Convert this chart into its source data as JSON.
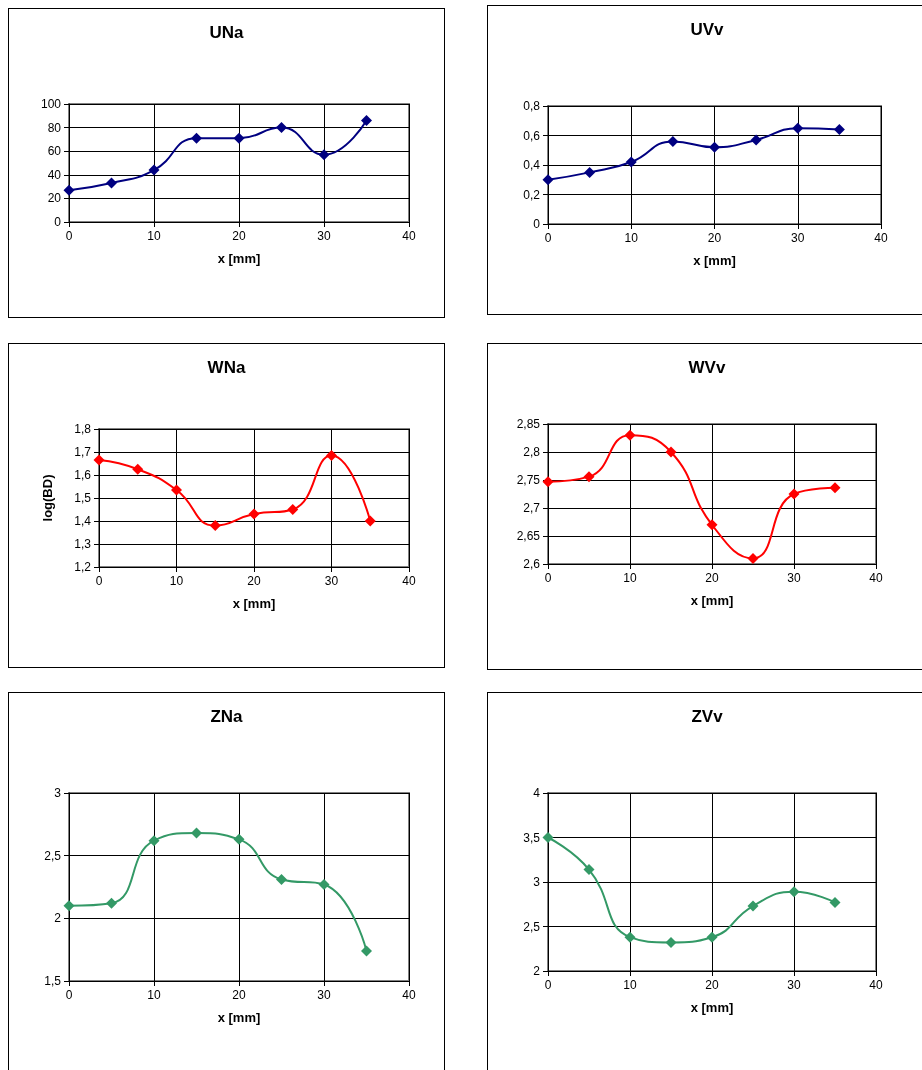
{
  "chart_data": [
    {
      "type": "line",
      "title": "UNa",
      "xlabel": "x [mm]",
      "x": [
        0,
        5,
        10,
        15,
        20,
        25,
        30,
        35
      ],
      "series": [
        {
          "color": "#000080",
          "values": [
            27,
            33,
            44,
            71,
            71,
            80,
            57,
            86
          ]
        }
      ],
      "xlim": [
        0,
        40
      ],
      "xticks": [
        0,
        10,
        20,
        30,
        40
      ],
      "ylim": [
        0,
        100
      ],
      "yticks": [
        0,
        20,
        40,
        60,
        80,
        100
      ],
      "grid": true,
      "marker": "diamond",
      "line_style": "solid"
    },
    {
      "type": "line",
      "title": "UVv",
      "xlabel": "x [mm]",
      "x": [
        0,
        5,
        10,
        15,
        20,
        25,
        30,
        35
      ],
      "series": [
        {
          "color": "#000080",
          "values": [
            0.3,
            0.35,
            0.42,
            0.56,
            0.52,
            0.57,
            0.65,
            0.64
          ]
        }
      ],
      "xlim": [
        0,
        40
      ],
      "xticks": [
        0,
        10,
        20,
        30,
        40
      ],
      "ylim": [
        0,
        0.8
      ],
      "yticks": [
        0,
        {
          "value": 0.2,
          "label": "0,2"
        },
        {
          "value": 0.4,
          "label": "0,4"
        },
        {
          "value": 0.6,
          "label": "0,6"
        },
        {
          "value": 0.8,
          "label": "0,8"
        }
      ],
      "grid": true,
      "marker": "diamond",
      "line_style": "solid"
    },
    {
      "type": "line",
      "title": "WNa",
      "xlabel": "x [mm]",
      "ylabel": "log(BD)",
      "x": [
        0,
        5,
        10,
        15,
        20,
        25,
        30,
        35
      ],
      "series": [
        {
          "color": "#ff0000",
          "values": [
            1.665,
            1.625,
            1.535,
            1.38,
            1.43,
            1.45,
            1.685,
            1.4
          ]
        }
      ],
      "xlim": [
        0,
        40
      ],
      "xticks": [
        0,
        10,
        20,
        30,
        40
      ],
      "ylim": [
        1.2,
        1.8
      ],
      "yticks": [
        {
          "value": 1.2,
          "label": "1,2"
        },
        {
          "value": 1.3,
          "label": "1,3"
        },
        {
          "value": 1.4,
          "label": "1,4"
        },
        {
          "value": 1.5,
          "label": "1,5"
        },
        {
          "value": 1.6,
          "label": "1,6"
        },
        {
          "value": 1.7,
          "label": "1,7"
        },
        {
          "value": 1.8,
          "label": "1,8"
        }
      ],
      "grid": true,
      "marker": "diamond",
      "line_style": "solid"
    },
    {
      "type": "line",
      "title": "WVv",
      "xlabel": "x [mm]",
      "x": [
        0,
        5,
        10,
        15,
        20,
        25,
        30,
        35
      ],
      "series": [
        {
          "color": "#ff0000",
          "values": [
            2.747,
            2.756,
            2.83,
            2.8,
            2.67,
            2.61,
            2.725,
            2.736
          ]
        }
      ],
      "xlim": [
        0,
        40
      ],
      "xticks": [
        0,
        10,
        20,
        30,
        40
      ],
      "ylim": [
        2.6,
        2.85
      ],
      "yticks": [
        {
          "value": 2.6,
          "label": "2,6"
        },
        {
          "value": 2.65,
          "label": "2,65"
        },
        {
          "value": 2.7,
          "label": "2,7"
        },
        {
          "value": 2.75,
          "label": "2,75"
        },
        {
          "value": 2.8,
          "label": "2,8"
        },
        {
          "value": 2.85,
          "label": "2,85"
        }
      ],
      "grid": true,
      "marker": "diamond",
      "line_style": "solid"
    },
    {
      "type": "line",
      "title": "ZNa",
      "xlabel": "x [mm]",
      "x": [
        0,
        5,
        10,
        15,
        20,
        25,
        30,
        35
      ],
      "series": [
        {
          "color": "#339966",
          "values": [
            2.1,
            2.12,
            2.62,
            2.68,
            2.63,
            2.31,
            2.27,
            1.74
          ]
        }
      ],
      "xlim": [
        0,
        40
      ],
      "xticks": [
        0,
        10,
        20,
        30,
        40
      ],
      "ylim": [
        1.5,
        3
      ],
      "yticks": [
        {
          "value": 1.5,
          "label": "1,5"
        },
        2,
        {
          "value": 2.5,
          "label": "2,5"
        },
        3
      ],
      "grid": true,
      "marker": "diamond",
      "line_style": "solid"
    },
    {
      "type": "line",
      "title": "ZVv",
      "xlabel": "x [mm]",
      "x": [
        0,
        5,
        10,
        15,
        20,
        25,
        30,
        35
      ],
      "series": [
        {
          "color": "#339966",
          "values": [
            3.5,
            3.14,
            2.38,
            2.32,
            2.38,
            2.73,
            2.89,
            2.77
          ]
        }
      ],
      "xlim": [
        0,
        40
      ],
      "xticks": [
        0,
        10,
        20,
        30,
        40
      ],
      "ylim": [
        2,
        4
      ],
      "yticks": [
        2,
        {
          "value": 2.5,
          "label": "2,5"
        },
        3,
        {
          "value": 3.5,
          "label": "3,5"
        },
        4
      ],
      "grid": true,
      "marker": "diamond",
      "line_style": "solid"
    }
  ]
}
